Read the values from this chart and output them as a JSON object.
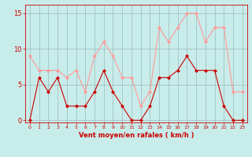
{
  "x": [
    0,
    1,
    2,
    3,
    4,
    5,
    6,
    7,
    8,
    9,
    10,
    11,
    12,
    13,
    14,
    15,
    16,
    17,
    18,
    19,
    20,
    21,
    22,
    23
  ],
  "vent_moyen": [
    0,
    6,
    4,
    6,
    2,
    2,
    2,
    4,
    7,
    4,
    2,
    0,
    0,
    2,
    6,
    6,
    7,
    9,
    7,
    7,
    7,
    2,
    0,
    0
  ],
  "rafales": [
    9,
    7,
    7,
    7,
    6,
    7,
    4,
    9,
    11,
    9,
    6,
    6,
    2,
    4,
    13,
    11,
    13,
    15,
    15,
    11,
    13,
    13,
    4,
    4
  ],
  "color_moyen": "#cc0000",
  "color_rafales": "#ff9999",
  "bg_color": "#c8ecea",
  "grid_color": "#99bbbb",
  "xlabel": "Vent moyen/en rafales ( km/h )",
  "xlabel_color": "#cc0000",
  "yticks": [
    0,
    5,
    10,
    15
  ],
  "xtick_labels": [
    "0",
    "1",
    "2",
    "3",
    "4",
    "5",
    "6",
    "7",
    "8",
    "9",
    "10",
    "11",
    "12",
    "13",
    "14",
    "15",
    "16",
    "17",
    "18",
    "19",
    "20",
    "21",
    "22",
    "23"
  ],
  "ylim": [
    -0.3,
    16.2
  ],
  "xlim": [
    -0.5,
    23.5
  ],
  "tick_color": "#cc0000",
  "axis_color": "#cc0000",
  "marker_size": 2.0,
  "line_width": 0.8
}
